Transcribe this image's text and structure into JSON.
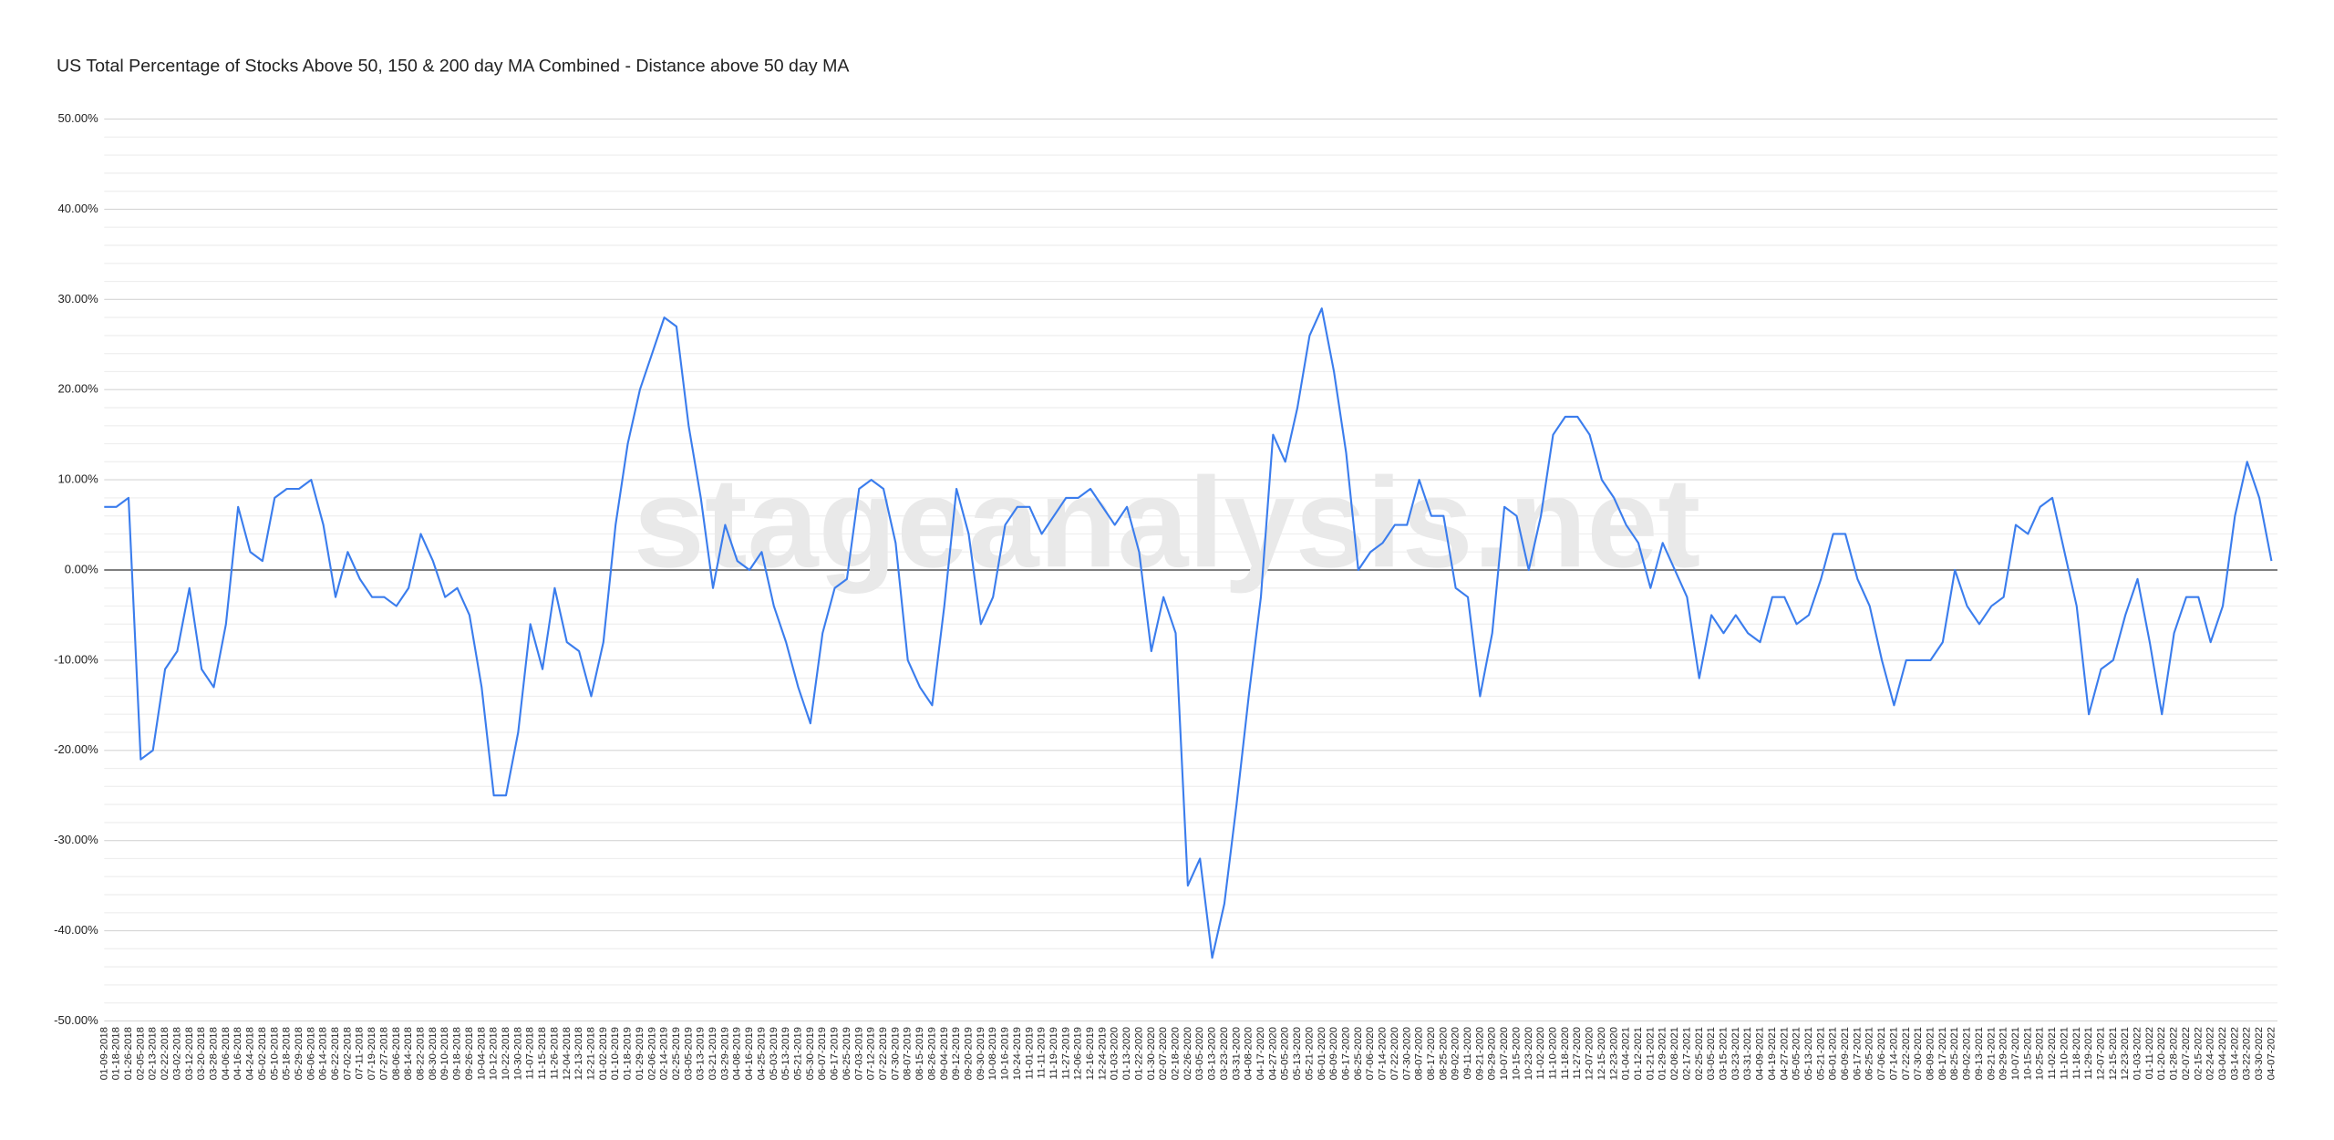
{
  "chart_data": {
    "type": "line",
    "title": "US Total Percentage of Stocks Above 50, 150 & 200 day MA Combined - Distance above 50 day MA",
    "watermark": "stageanalysis.net",
    "categories": [
      "01-09-2018",
      "01-18-2018",
      "01-26-2018",
      "02-05-2018",
      "02-13-2018",
      "02-22-2018",
      "03-02-2018",
      "03-12-2018",
      "03-20-2018",
      "03-28-2018",
      "04-06-2018",
      "04-16-2018",
      "04-24-2018",
      "05-02-2018",
      "05-10-2018",
      "05-18-2018",
      "05-29-2018",
      "06-06-2018",
      "06-14-2018",
      "06-22-2018",
      "07-02-2018",
      "07-11-2018",
      "07-19-2018",
      "07-27-2018",
      "08-06-2018",
      "08-14-2018",
      "08-22-2018",
      "08-30-2018",
      "09-10-2018",
      "09-18-2018",
      "09-26-2018",
      "10-04-2018",
      "10-12-2018",
      "10-22-2018",
      "10-30-2018",
      "11-07-2018",
      "11-15-2018",
      "11-26-2018",
      "12-04-2018",
      "12-13-2018",
      "12-21-2018",
      "01-02-2019",
      "01-10-2019",
      "01-18-2019",
      "01-29-2019",
      "02-06-2019",
      "02-14-2019",
      "02-25-2019",
      "03-05-2019",
      "03-13-2019",
      "03-21-2019",
      "03-29-2019",
      "04-08-2019",
      "04-16-2019",
      "04-25-2019",
      "05-03-2019",
      "05-13-2019",
      "05-21-2019",
      "05-30-2019",
      "06-07-2019",
      "06-17-2019",
      "06-25-2019",
      "07-03-2019",
      "07-12-2019",
      "07-22-2019",
      "07-30-2019",
      "08-07-2019",
      "08-15-2019",
      "08-26-2019",
      "09-04-2019",
      "09-12-2019",
      "09-20-2019",
      "09-30-2019",
      "10-08-2019",
      "10-16-2019",
      "10-24-2019",
      "11-01-2019",
      "11-11-2019",
      "11-19-2019",
      "11-27-2019",
      "12-06-2019",
      "12-16-2019",
      "12-24-2019",
      "01-03-2020",
      "01-13-2020",
      "01-22-2020",
      "01-30-2020",
      "02-07-2020",
      "02-18-2020",
      "02-26-2020",
      "03-05-2020",
      "03-13-2020",
      "03-23-2020",
      "03-31-2020",
      "04-08-2020",
      "04-17-2020",
      "04-27-2020",
      "05-05-2020",
      "05-13-2020",
      "05-21-2020",
      "06-01-2020",
      "06-09-2020",
      "06-17-2020",
      "06-25-2020",
      "07-06-2020",
      "07-14-2020",
      "07-22-2020",
      "07-30-2020",
      "08-07-2020",
      "08-17-2020",
      "08-25-2020",
      "09-02-2020",
      "09-11-2020",
      "09-21-2020",
      "09-29-2020",
      "10-07-2020",
      "10-15-2020",
      "10-23-2020",
      "11-02-2020",
      "11-10-2020",
      "11-18-2020",
      "11-27-2020",
      "12-07-2020",
      "12-15-2020",
      "12-23-2020",
      "01-04-2021",
      "01-12-2021",
      "01-21-2021",
      "01-29-2021",
      "02-08-2021",
      "02-17-2021",
      "02-25-2021",
      "03-05-2021",
      "03-15-2021",
      "03-23-2021",
      "03-31-2021",
      "04-09-2021",
      "04-19-2021",
      "04-27-2021",
      "05-05-2021",
      "05-13-2021",
      "05-21-2021",
      "06-01-2021",
      "06-09-2021",
      "06-17-2021",
      "06-25-2021",
      "07-06-2021",
      "07-14-2021",
      "07-22-2021",
      "07-30-2021",
      "08-09-2021",
      "08-17-2021",
      "08-25-2021",
      "09-02-2021",
      "09-13-2021",
      "09-21-2021",
      "09-29-2021",
      "10-07-2021",
      "10-15-2021",
      "10-25-2021",
      "11-02-2021",
      "11-10-2021",
      "11-18-2021",
      "11-29-2021",
      "12-07-2021",
      "12-15-2021",
      "12-23-2021",
      "01-03-2022",
      "01-11-2022",
      "01-20-2022",
      "01-28-2022",
      "02-07-2022",
      "02-15-2022",
      "02-24-2022",
      "03-04-2022",
      "03-14-2022",
      "03-22-2022",
      "03-30-2022",
      "04-07-2022"
    ],
    "values": [
      7,
      7,
      8,
      -21,
      -20,
      -11,
      -9,
      -2,
      -11,
      -13,
      -6,
      7,
      2,
      1,
      8,
      9,
      9,
      10,
      5,
      -3,
      2,
      -1,
      -3,
      -3,
      -4,
      -2,
      4,
      1,
      -3,
      -2,
      -5,
      -13,
      -25,
      -25,
      -18,
      -6,
      -11,
      -2,
      -8,
      -9,
      -14,
      -8,
      5,
      14,
      20,
      24,
      28,
      27,
      16,
      8,
      -2,
      5,
      1,
      0,
      2,
      -4,
      -8,
      -13,
      -17,
      -7,
      -2,
      -1,
      9,
      10,
      9,
      3,
      -10,
      -13,
      -15,
      -4,
      9,
      4,
      -6,
      -3,
      5,
      7,
      7,
      4,
      6,
      8,
      8,
      9,
      7,
      5,
      7,
      2,
      -9,
      -3,
      -7,
      -35,
      -32,
      -43,
      -37,
      -26,
      -14,
      -3,
      15,
      12,
      18,
      26,
      29,
      22,
      13,
      0,
      2,
      3,
      5,
      5,
      10,
      6,
      6,
      -2,
      -3,
      -14,
      -7,
      7,
      6,
      0,
      6,
      15,
      17,
      17,
      15,
      10,
      8,
      5,
      3,
      -2,
      3,
      0,
      -3,
      -12,
      -5,
      -7,
      -5,
      -7,
      -8,
      -3,
      -3,
      -6,
      -5,
      -1,
      4,
      4,
      -1,
      -4,
      -10,
      -15,
      -10,
      -10,
      -10,
      -8,
      0,
      -4,
      -6,
      -4,
      -3,
      5,
      4,
      7,
      8,
      2,
      -4,
      -16,
      -11,
      -10,
      -5,
      -1,
      -8,
      -16,
      -7,
      -3,
      -3,
      -8,
      -4,
      6,
      12,
      8,
      1
    ],
    "color": "#3b7ded",
    "ylim": [
      -50,
      50
    ],
    "yticks": [
      {
        "value": -50,
        "label": "-50.00%"
      },
      {
        "value": -40,
        "label": "-40.00%"
      },
      {
        "value": -30,
        "label": "-30.00%"
      },
      {
        "value": -20,
        "label": "-20.00%"
      },
      {
        "value": -10,
        "label": "-10.00%"
      },
      {
        "value": 0,
        "label": "0.00%"
      },
      {
        "value": 10,
        "label": "10.00%"
      },
      {
        "value": 20,
        "label": "20.00%"
      },
      {
        "value": 30,
        "label": "30.00%"
      },
      {
        "value": 40,
        "label": "40.00%"
      },
      {
        "value": 50,
        "label": "50.00%"
      }
    ],
    "minor_yticks": [
      -48,
      -46,
      -44,
      -42,
      -38,
      -36,
      -34,
      -32,
      -28,
      -26,
      -24,
      -22,
      -18,
      -16,
      -14,
      -12,
      -8,
      -6,
      -4,
      -2,
      2,
      4,
      6,
      8,
      12,
      14,
      16,
      18,
      22,
      24,
      26,
      28,
      32,
      34,
      36,
      38,
      42,
      44,
      46,
      48
    ],
    "grid": true
  }
}
